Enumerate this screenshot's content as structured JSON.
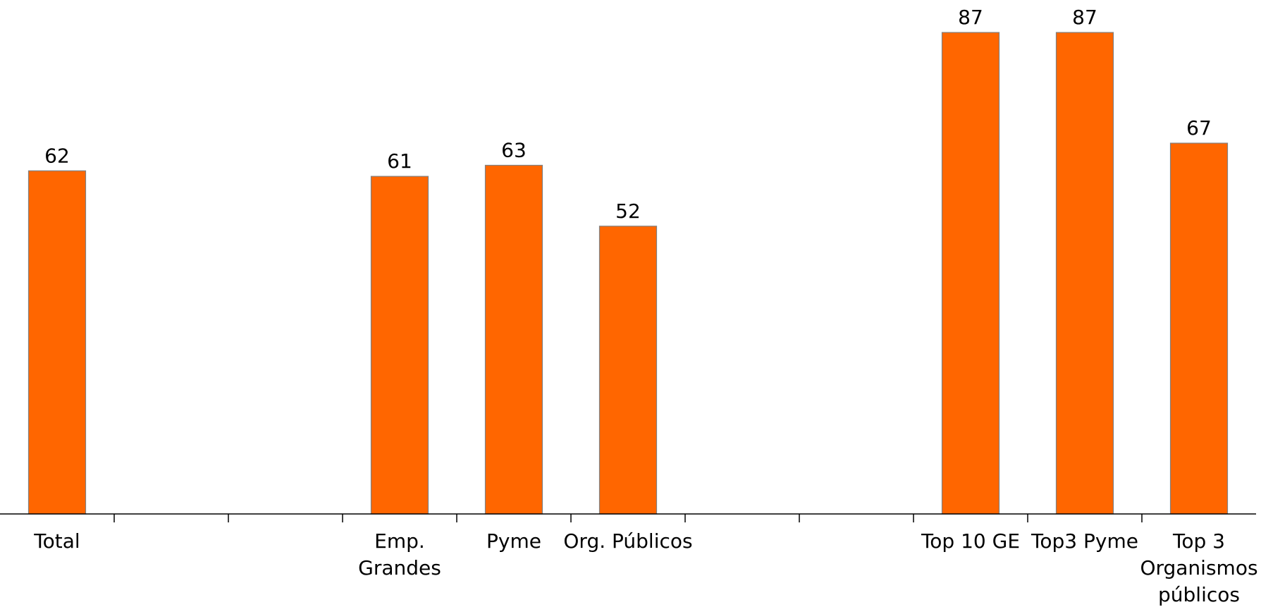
{
  "chart_data": {
    "type": "bar",
    "categories": [
      [
        "Total"
      ],
      [],
      [],
      [
        "Emp.",
        "Grandes"
      ],
      [
        "Pyme"
      ],
      [
        "Org. Públicos"
      ],
      [],
      [],
      [
        "Top 10 GE"
      ],
      [
        "Top3 Pyme"
      ],
      [
        "Top 3",
        "Organismos",
        "públicos"
      ]
    ],
    "values": [
      62,
      null,
      null,
      61,
      63,
      52,
      null,
      null,
      87,
      87,
      67
    ],
    "data_labels": [
      "62",
      "",
      "",
      "61",
      "63",
      "52",
      "",
      "",
      "87",
      "87",
      "67"
    ],
    "ylim": [
      0,
      100
    ],
    "grid": false,
    "legend": "none",
    "bar_color": "#FF6600",
    "bar_border_color": "#808080",
    "axis_color": "#000000"
  }
}
